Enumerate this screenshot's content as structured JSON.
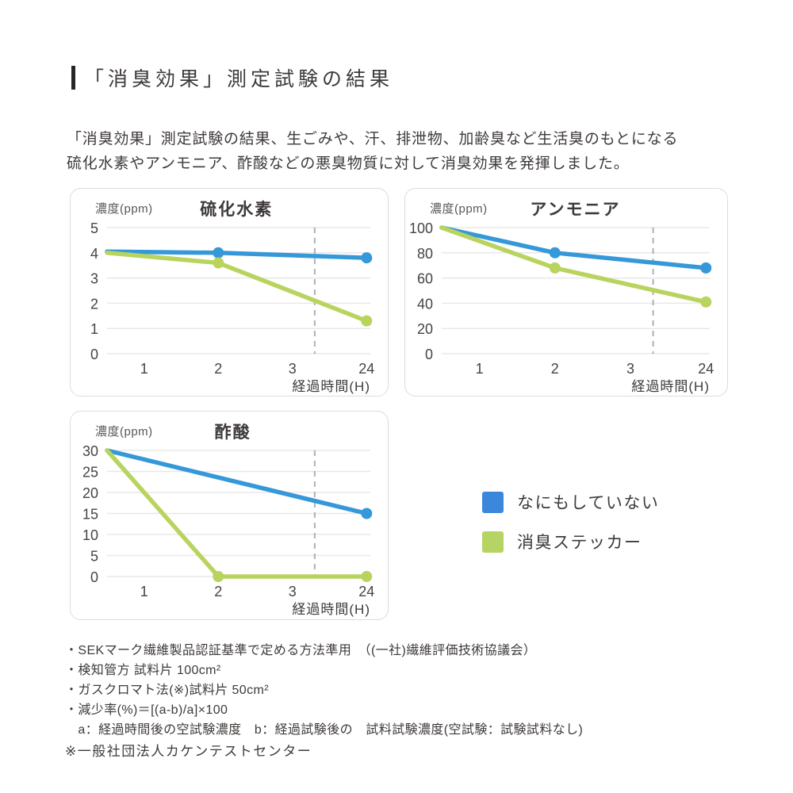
{
  "header": {
    "title": "「消臭効果」測定試験の結果",
    "description": "「消臭効果」測定試験の結果、生ごみや、汗、排泄物、加齢臭など生活臭のもとになる\n硫化水素やアンモニア、酢酸などの悪臭物質に対して消臭効果を発揮しました。"
  },
  "legend": {
    "items": [
      {
        "label": "なにもしていない",
        "color": "#3a87db"
      },
      {
        "label": "消臭ステッカー",
        "color": "#b6d464"
      }
    ]
  },
  "chart_data": [
    {
      "type": "line",
      "title": "硫化水素",
      "ylabel": "濃度(ppm)",
      "xlabel": "経過時間(H)",
      "x_tick_labels": [
        "1",
        "2",
        "3",
        "24"
      ],
      "x_tick_positions": [
        1,
        2,
        3,
        4
      ],
      "xlim": [
        0.5,
        4.05
      ],
      "ylim": [
        0,
        5
      ],
      "y_ticks": [
        0,
        1,
        2,
        3,
        4,
        5
      ],
      "grid": true,
      "dashed_vline_pos": 3.3,
      "series": [
        {
          "name": "なにもしていない",
          "color": "#3598d8",
          "points": [
            {
              "h": 0,
              "t": 0.5,
              "v": 4.05,
              "dot": false
            },
            {
              "h": 2,
              "t": 2,
              "v": 4.0,
              "dot": true
            },
            {
              "h": 24,
              "t": 4,
              "v": 3.8,
              "dot": true
            }
          ]
        },
        {
          "name": "消臭ステッカー",
          "color": "#b8d45f",
          "points": [
            {
              "h": 0,
              "t": 0.5,
              "v": 4.0,
              "dot": false
            },
            {
              "h": 2,
              "t": 2,
              "v": 3.6,
              "dot": true
            },
            {
              "h": 24,
              "t": 4,
              "v": 1.3,
              "dot": true
            }
          ]
        }
      ]
    },
    {
      "type": "line",
      "title": "アンモニア",
      "ylabel": "濃度(ppm)",
      "xlabel": "経過時間(H)",
      "x_tick_labels": [
        "1",
        "2",
        "3",
        "24"
      ],
      "x_tick_positions": [
        1,
        2,
        3,
        4
      ],
      "xlim": [
        0.5,
        4.05
      ],
      "ylim": [
        0,
        100
      ],
      "y_ticks": [
        0,
        20,
        40,
        60,
        80,
        100
      ],
      "grid": true,
      "dashed_vline_pos": 3.3,
      "series": [
        {
          "name": "なにもしていない",
          "color": "#3598d8",
          "points": [
            {
              "h": 0,
              "t": 0.5,
              "v": 100,
              "dot": false
            },
            {
              "h": 2,
              "t": 2,
              "v": 80,
              "dot": true
            },
            {
              "h": 24,
              "t": 4,
              "v": 68,
              "dot": true
            }
          ]
        },
        {
          "name": "消臭ステッカー",
          "color": "#b8d45f",
          "points": [
            {
              "h": 0,
              "t": 0.5,
              "v": 100,
              "dot": false
            },
            {
              "h": 2,
              "t": 2,
              "v": 68,
              "dot": true
            },
            {
              "h": 24,
              "t": 4,
              "v": 41,
              "dot": true
            }
          ]
        }
      ]
    },
    {
      "type": "line",
      "title": "酢酸",
      "ylabel": "濃度(ppm)",
      "xlabel": "経過時間(H)",
      "x_tick_labels": [
        "1",
        "2",
        "3",
        "24"
      ],
      "x_tick_positions": [
        1,
        2,
        3,
        4
      ],
      "xlim": [
        0.5,
        4.05
      ],
      "ylim": [
        0,
        30
      ],
      "y_ticks": [
        0,
        5,
        10,
        15,
        20,
        25,
        30
      ],
      "grid": true,
      "dashed_vline_pos": 3.3,
      "series": [
        {
          "name": "なにもしていない",
          "color": "#3598d8",
          "points": [
            {
              "h": 0,
              "t": 0.5,
              "v": 30,
              "dot": false
            },
            {
              "h": 24,
              "t": 4,
              "v": 15,
              "dot": true
            }
          ]
        },
        {
          "name": "消臭ステッカー",
          "color": "#b8d45f",
          "points": [
            {
              "h": 0,
              "t": 0.5,
              "v": 30,
              "dot": false
            },
            {
              "h": 2,
              "t": 2,
              "v": 0,
              "dot": true
            },
            {
              "h": 24,
              "t": 4,
              "v": 0,
              "dot": true
            }
          ]
        }
      ]
    }
  ],
  "footnotes": {
    "items": [
      "・SEKマーク繊維製品認証基準で定める方法準用　（(一社)繊維評価技術協議会）",
      "・検知管方 試料片 100cm²",
      "・ガスクロマト法(※)試料片 50cm²",
      "・減少率(%)＝[(a-b)/a]×100",
      "　a：経過時間後の空試験濃度　b：経過試験後の　試料試験濃度(空試験：試験試料なし)"
    ],
    "agency_note": "※一般社団法人カケンテストセンター"
  }
}
